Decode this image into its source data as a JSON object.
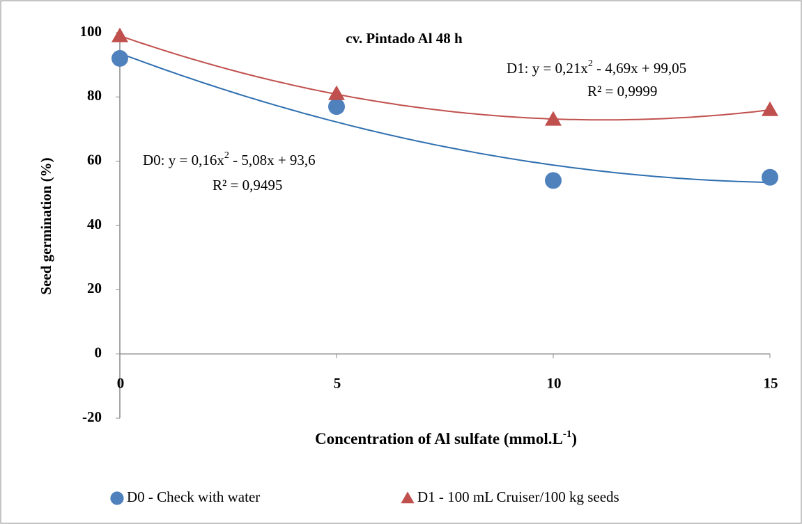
{
  "chart_data": {
    "type": "scatter",
    "title": "cv. Pintado Al 48 h",
    "x_label": [
      "Concentration of Al sulfate (mmol.L",
      "-1",
      ")"
    ],
    "y_label": "Seed germination (%)",
    "x": [
      0,
      5,
      10,
      15
    ],
    "xlim": [
      0,
      15
    ],
    "xticks": [
      0,
      5,
      10,
      15
    ],
    "ylim": [
      -20,
      100
    ],
    "yticks": [
      -20,
      0,
      20,
      40,
      60,
      80,
      100
    ],
    "grid": false,
    "legend": "bottom",
    "series": [
      {
        "name": "D0 - Check with water",
        "color": "#4f81bd",
        "line_color": "#2e6fb0",
        "marker": "circle",
        "values": [
          92,
          77,
          54,
          55
        ],
        "trendline": [
          0.16,
          -5.08,
          93.6
        ],
        "equation": [
          "D0: y = 0,16x",
          "2",
          " - 5,08x + 93,6"
        ],
        "r2": "R² = 0,9495"
      },
      {
        "name": "D1 - 100 mL Cruiser/100 kg seeds",
        "color": "#c0504d",
        "line_color": "#c0504d",
        "marker": "triangle",
        "values": [
          99,
          81,
          73,
          76
        ],
        "trendline": [
          0.21,
          -4.69,
          99.05
        ],
        "equation": [
          "D1: y = 0,21x",
          "2",
          " - 4,69x + 99,05"
        ],
        "r2": "R² = 0,9999"
      }
    ]
  }
}
